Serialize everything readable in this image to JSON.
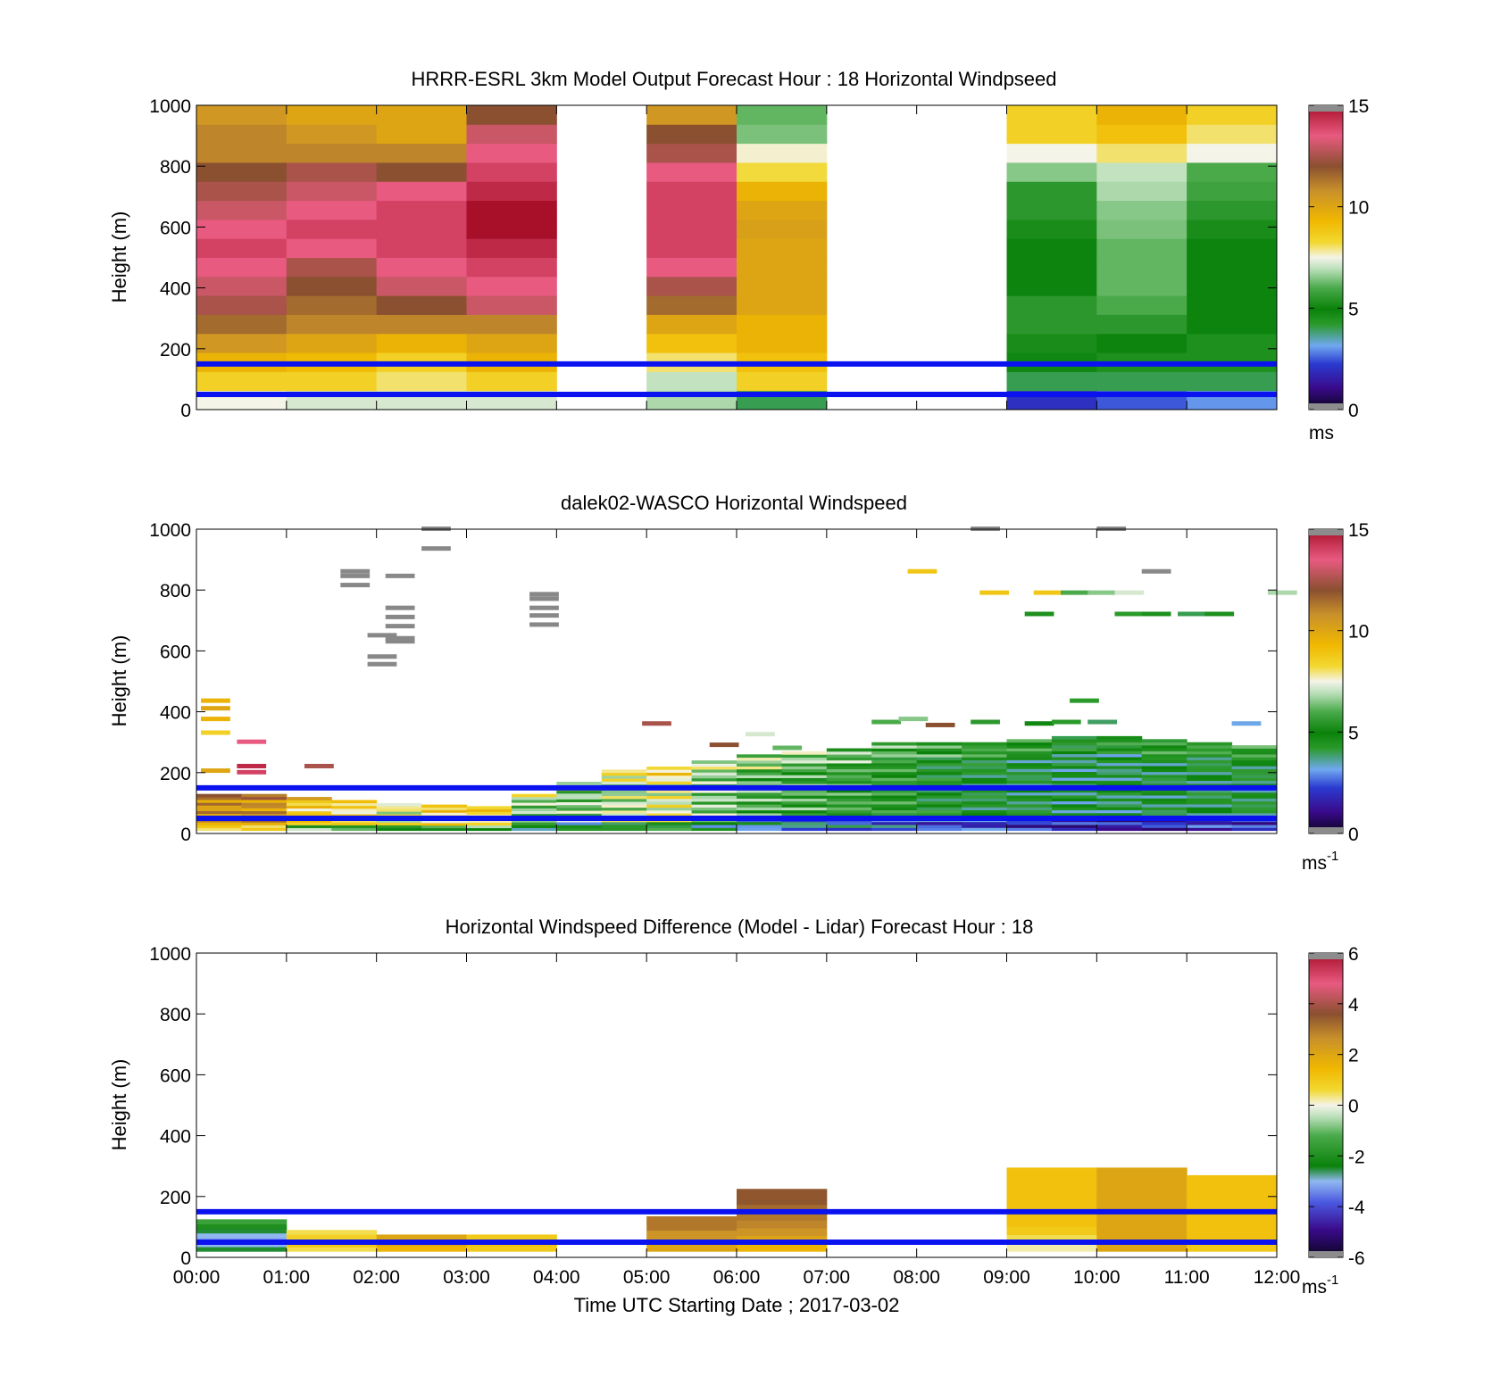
{
  "figure": {
    "xlabel": "Time UTC  Starting Date ; 2017-03-02",
    "xticks": [
      "00:00",
      "01:00",
      "02:00",
      "03:00",
      "04:00",
      "05:00",
      "06:00",
      "07:00",
      "08:00",
      "09:00",
      "10:00",
      "11:00",
      "12:00"
    ]
  },
  "colorscales": {
    "speed": [
      [
        0.0,
        "#0a0420"
      ],
      [
        0.07,
        "#3a0a8a"
      ],
      [
        0.15,
        "#2a3ad0"
      ],
      [
        0.21,
        "#70a8f0"
      ],
      [
        0.28,
        "#2a9a2a"
      ],
      [
        0.33,
        "#0a820a"
      ],
      [
        0.4,
        "#4aaa4a"
      ],
      [
        0.46,
        "#b8deb8"
      ],
      [
        0.5,
        "#f4f4e8"
      ],
      [
        0.55,
        "#f2d830"
      ],
      [
        0.62,
        "#f0b800"
      ],
      [
        0.72,
        "#c8902a"
      ],
      [
        0.8,
        "#8a5030"
      ],
      [
        0.9,
        "#e85a80"
      ],
      [
        1.0,
        "#a8102a"
      ]
    ],
    "diff": [
      [
        0.0,
        "#0a0420"
      ],
      [
        0.09,
        "#3a0a8a"
      ],
      [
        0.18,
        "#4a58e0"
      ],
      [
        0.25,
        "#90b8f0"
      ],
      [
        0.3,
        "#0a820a"
      ],
      [
        0.4,
        "#4aaa4a"
      ],
      [
        0.46,
        "#b8deb8"
      ],
      [
        0.5,
        "#f4f4e8"
      ],
      [
        0.55,
        "#f2d830"
      ],
      [
        0.62,
        "#f0b800"
      ],
      [
        0.72,
        "#c8902a"
      ],
      [
        0.8,
        "#8a5030"
      ],
      [
        0.9,
        "#e85a80"
      ],
      [
        1.0,
        "#a8102a"
      ]
    ]
  },
  "chart_data": [
    {
      "type": "heatmap",
      "title": "HRRR-ESRL 3km Model Output   Forecast Hour : 18 Horizontal Windpseed",
      "ylabel": "Height (m)",
      "ylim": [
        0,
        1000
      ],
      "yticks": [
        "0",
        "200",
        "400",
        "600",
        "800",
        "1000"
      ],
      "xlim": [
        0,
        12
      ],
      "colorbar": {
        "scale": "speed",
        "range": [
          0,
          15
        ],
        "ticks": [
          "0",
          "5",
          "10",
          "15"
        ],
        "label": "ms"
      },
      "reference_lines_m": [
        50,
        150
      ],
      "model_columns": [
        {
          "t": 0,
          "values": [
            7.5,
            8.5,
            9.5,
            10.5,
            11.5,
            12.5,
            13,
            13.5,
            14,
            13.5,
            13,
            12.5,
            12,
            11,
            11,
            10.5
          ]
        },
        {
          "t": 1,
          "values": [
            7.2,
            8.5,
            9.2,
            10,
            11,
            11.5,
            12,
            12.5,
            13.5,
            14,
            13.5,
            13,
            12.5,
            11,
            10.5,
            10
          ]
        },
        {
          "t": 2,
          "values": [
            7.2,
            8,
            8.5,
            9.5,
            11,
            12,
            13,
            13.5,
            14,
            14,
            14,
            13.5,
            12,
            11,
            10,
            10
          ]
        },
        {
          "t": 3,
          "values": [
            7.2,
            8.5,
            9.5,
            10,
            11,
            13,
            13.5,
            14,
            14.5,
            15,
            15,
            14.5,
            14,
            13.5,
            13,
            12
          ]
        },
        {
          "t": 5,
          "values": [
            6.8,
            7,
            8,
            9,
            10,
            11.5,
            12.5,
            13.5,
            14,
            14,
            14,
            14,
            13.5,
            12.5,
            12,
            10.5
          ]
        },
        {
          "t": 6,
          "values": [
            4,
            8.5,
            9,
            9.5,
            9.5,
            10,
            10,
            10,
            10,
            10.2,
            10,
            9.5,
            8.2,
            7.6,
            6.4,
            6.2
          ]
        },
        {
          "t": 9,
          "values": [
            2,
            4,
            4.8,
            5.2,
            5.5,
            5.5,
            5,
            5,
            5,
            5.2,
            5.5,
            5.5,
            6.5,
            7.5,
            8.5,
            8.5
          ]
        },
        {
          "t": 10,
          "values": [
            2.5,
            4,
            4.5,
            5,
            5.5,
            6,
            6.2,
            6.2,
            6.2,
            6.4,
            6.5,
            6.8,
            7,
            8,
            9,
            9.5
          ]
        },
        {
          "t": 11,
          "values": [
            3,
            4,
            4.5,
            4.5,
            5,
            5,
            5,
            5,
            5,
            5.2,
            5.5,
            5.8,
            6,
            7.5,
            8,
            8.5
          ]
        }
      ]
    },
    {
      "type": "heatmap",
      "title": "dalek02-WASCO  Horizontal Windspeed",
      "ylabel": "Height (m)",
      "ylim": [
        0,
        1000
      ],
      "yticks": [
        "0",
        "200",
        "400",
        "600",
        "800",
        "1000"
      ],
      "xlim": [
        0,
        12
      ],
      "colorbar": {
        "scale": "speed",
        "range": [
          0,
          15
        ],
        "ticks": [
          "0",
          "5",
          "10",
          "15"
        ],
        "label": "ms",
        "label_sup": "-1"
      },
      "reference_lines_m": [
        50,
        150
      ],
      "lidar_profile": [
        {
          "t": 0.0,
          "top_m": 130,
          "base": 10.5
        },
        {
          "t": 0.5,
          "top_m": 130,
          "base": 10.5
        },
        {
          "t": 1.0,
          "top_m": 120,
          "base": 8.5
        },
        {
          "t": 1.5,
          "top_m": 110,
          "base": 8.0
        },
        {
          "t": 2.0,
          "top_m": 100,
          "base": 7.5
        },
        {
          "t": 2.5,
          "top_m": 95,
          "base": 8.5
        },
        {
          "t": 3.0,
          "top_m": 90,
          "base": 8.5
        },
        {
          "t": 3.5,
          "top_m": 130,
          "base": 6.5
        },
        {
          "t": 4.0,
          "top_m": 170,
          "base": 6.5
        },
        {
          "t": 4.5,
          "top_m": 210,
          "base": 7.0
        },
        {
          "t": 5.0,
          "top_m": 220,
          "base": 7.5
        },
        {
          "t": 5.5,
          "top_m": 240,
          "base": 6.5
        },
        {
          "t": 6.0,
          "top_m": 260,
          "base": 6.0
        },
        {
          "t": 6.5,
          "top_m": 270,
          "base": 5.8
        },
        {
          "t": 7.0,
          "top_m": 280,
          "base": 5.5
        },
        {
          "t": 7.5,
          "top_m": 300,
          "base": 5.2
        },
        {
          "t": 8.0,
          "top_m": 300,
          "base": 4.8
        },
        {
          "t": 8.5,
          "top_m": 300,
          "base": 4.6
        },
        {
          "t": 9.0,
          "top_m": 310,
          "base": 4.4
        },
        {
          "t": 9.5,
          "top_m": 320,
          "base": 4.2
        },
        {
          "t": 10.0,
          "top_m": 320,
          "base": 4.2
        },
        {
          "t": 10.5,
          "top_m": 310,
          "base": 4.4
        },
        {
          "t": 11.0,
          "top_m": 300,
          "base": 4.5
        },
        {
          "t": 11.5,
          "top_m": 290,
          "base": 4.5
        }
      ],
      "lidar_outliers": [
        {
          "t": 1.6,
          "h": 860,
          "v": -1
        },
        {
          "t": 1.6,
          "h": 845,
          "v": -1
        },
        {
          "t": 1.6,
          "h": 815,
          "v": -1
        },
        {
          "t": 2.1,
          "h": 845,
          "v": -1
        },
        {
          "t": 2.1,
          "h": 740,
          "v": -1
        },
        {
          "t": 2.1,
          "h": 710,
          "v": -1
        },
        {
          "t": 2.1,
          "h": 680,
          "v": -1
        },
        {
          "t": 2.1,
          "h": 640,
          "v": -1
        },
        {
          "t": 2.1,
          "h": 630,
          "v": -1
        },
        {
          "t": 1.9,
          "h": 650,
          "v": -1
        },
        {
          "t": 1.9,
          "h": 580,
          "v": -1
        },
        {
          "t": 1.9,
          "h": 555,
          "v": -1
        },
        {
          "t": 2.5,
          "h": 1000,
          "v": -1
        },
        {
          "t": 2.5,
          "h": 935,
          "v": -1
        },
        {
          "t": 3.7,
          "h": 785,
          "v": -1
        },
        {
          "t": 3.7,
          "h": 770,
          "v": -1
        },
        {
          "t": 3.7,
          "h": 740,
          "v": -1
        },
        {
          "t": 3.7,
          "h": 715,
          "v": -1
        },
        {
          "t": 3.7,
          "h": 685,
          "v": -1
        },
        {
          "t": 0.05,
          "h": 435,
          "v": 9.5
        },
        {
          "t": 0.05,
          "h": 410,
          "v": 10
        },
        {
          "t": 0.05,
          "h": 375,
          "v": 9.5
        },
        {
          "t": 0.05,
          "h": 330,
          "v": 8.5
        },
        {
          "t": 0.05,
          "h": 205,
          "v": 10
        },
        {
          "t": 0.45,
          "h": 300,
          "v": 13.5
        },
        {
          "t": 0.45,
          "h": 220,
          "v": 14.5
        },
        {
          "t": 0.45,
          "h": 200,
          "v": 14
        },
        {
          "t": 1.2,
          "h": 220,
          "v": 12.5
        },
        {
          "t": 4.95,
          "h": 360,
          "v": 12.5
        },
        {
          "t": 5.7,
          "h": 290,
          "v": 12
        },
        {
          "t": 6.1,
          "h": 325,
          "v": 7.2
        },
        {
          "t": 6.4,
          "h": 280,
          "v": 6.2
        },
        {
          "t": 7.5,
          "h": 365,
          "v": 6
        },
        {
          "t": 7.8,
          "h": 375,
          "v": 6.5
        },
        {
          "t": 8.1,
          "h": 355,
          "v": 12
        },
        {
          "t": 8.6,
          "h": 365,
          "v": 5.5
        },
        {
          "t": 9.2,
          "h": 360,
          "v": 4.8
        },
        {
          "t": 9.5,
          "h": 365,
          "v": 4.2
        },
        {
          "t": 9.7,
          "h": 435,
          "v": 4.2
        },
        {
          "t": 9.9,
          "h": 365,
          "v": 3.9
        },
        {
          "t": 7.9,
          "h": 860,
          "v": 8.8
        },
        {
          "t": 8.6,
          "h": 1000,
          "v": -1
        },
        {
          "t": 10.0,
          "h": 1000,
          "v": -1
        },
        {
          "t": 8.7,
          "h": 790,
          "v": 8.8
        },
        {
          "t": 9.3,
          "h": 790,
          "v": 8.8
        },
        {
          "t": 9.6,
          "h": 790,
          "v": 6
        },
        {
          "t": 9.9,
          "h": 790,
          "v": 6.5
        },
        {
          "t": 10.2,
          "h": 790,
          "v": 7.2
        },
        {
          "t": 11.9,
          "h": 790,
          "v": 6.8
        },
        {
          "t": 9.2,
          "h": 720,
          "v": 4.5
        },
        {
          "t": 10.2,
          "h": 720,
          "v": 4.2
        },
        {
          "t": 10.5,
          "h": 720,
          "v": 4.5
        },
        {
          "t": 10.9,
          "h": 720,
          "v": 4.0
        },
        {
          "t": 11.2,
          "h": 720,
          "v": 4.5
        },
        {
          "t": 10.5,
          "h": 860,
          "v": -1
        },
        {
          "t": 11.5,
          "h": 360,
          "v": 3.2
        }
      ]
    },
    {
      "type": "heatmap",
      "title": "Horizontal Windspeed Difference (Model - Lidar) Forecast Hour : 18",
      "ylabel": "Height (m)",
      "ylim": [
        0,
        1000
      ],
      "yticks": [
        "0",
        "200",
        "400",
        "600",
        "800",
        "1000"
      ],
      "xlim": [
        0,
        12
      ],
      "colorbar": {
        "scale": "diff",
        "range": [
          -6,
          6
        ],
        "ticks": [
          "-6",
          "-4",
          "-2",
          "0",
          "2",
          "4",
          "6"
        ],
        "label": "ms",
        "label_sup": "-1"
      },
      "reference_lines_m": [
        50,
        150
      ],
      "difference_columns": [
        {
          "t": 0,
          "top_m": 125,
          "values": [
            -2.5,
            -3,
            -3.2,
            -3,
            -2.5,
            -2,
            -1.5
          ]
        },
        {
          "t": 1,
          "top_m": 90,
          "values": [
            0.5,
            1,
            1,
            0.8,
            0.5
          ]
        },
        {
          "t": 2,
          "top_m": 75,
          "values": [
            1.5,
            2,
            2
          ]
        },
        {
          "t": 3,
          "top_m": 75,
          "values": [
            1,
            1.2,
            1
          ]
        },
        {
          "t": 5,
          "top_m": 135,
          "values": [
            2,
            2.5,
            2.5,
            3,
            3
          ]
        },
        {
          "t": 6,
          "top_m": 225,
          "values": [
            1.5,
            2,
            2.5,
            2.8,
            3,
            3.2,
            3.5,
            3.5
          ]
        },
        {
          "t": 9,
          "top_m": 295,
          "values": [
            0.2,
            0.5,
            1,
            1.2,
            1.2,
            1.2,
            1.2,
            1.2,
            1.2,
            1.2
          ]
        },
        {
          "t": 10,
          "top_m": 295,
          "values": [
            2,
            2,
            2,
            2,
            2,
            2,
            2,
            2,
            2,
            2
          ]
        },
        {
          "t": 11,
          "top_m": 270,
          "values": [
            1,
            1.2,
            1.2,
            1.2,
            1.2,
            1.2,
            1.2,
            1.2,
            1.2
          ]
        }
      ]
    }
  ]
}
